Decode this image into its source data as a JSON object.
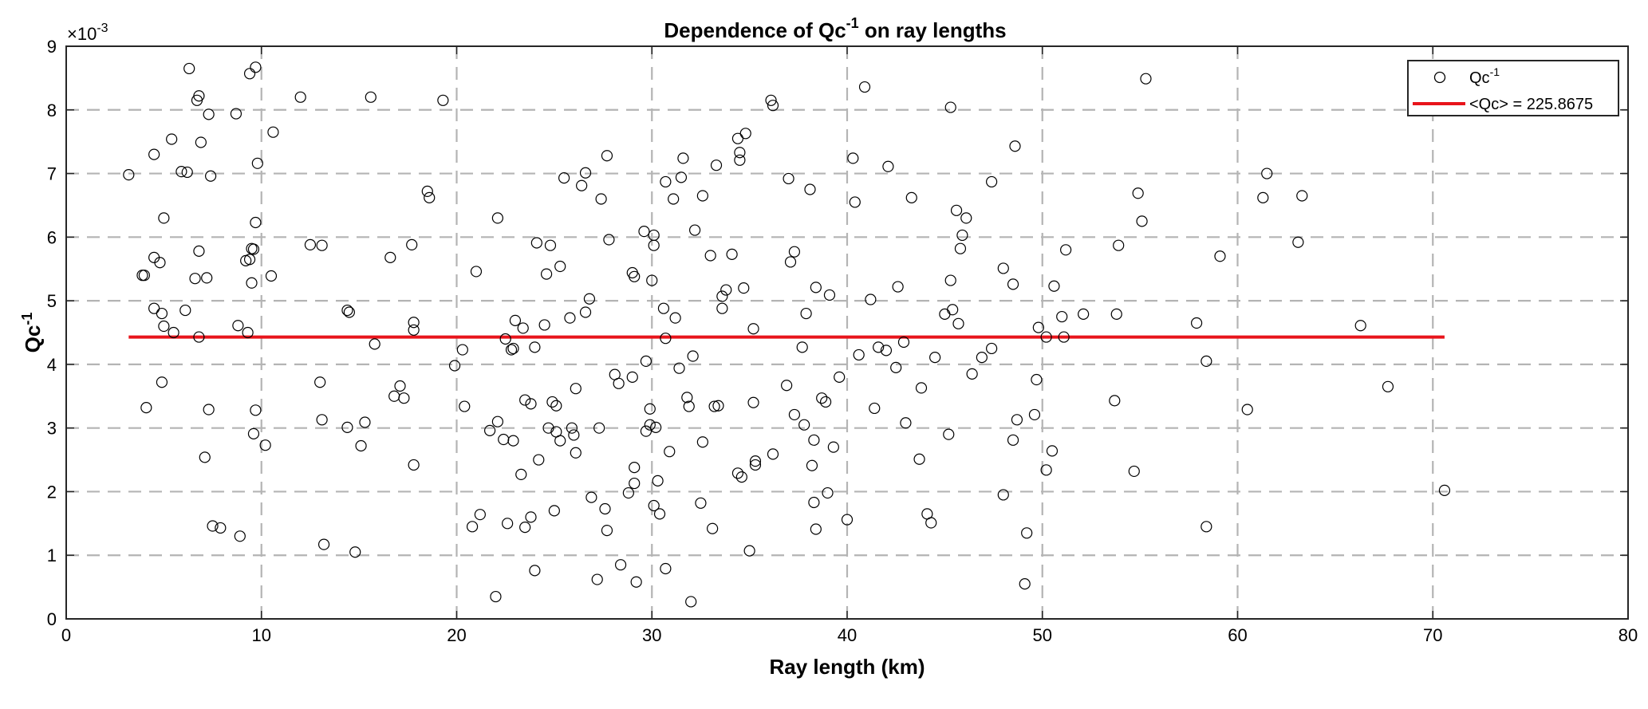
{
  "chart_data": {
    "type": "scatter",
    "title": {
      "base": "Dependence of Qc",
      "sup": "-1",
      "tail": " on ray lengths"
    },
    "xlabel": "Ray length (km)",
    "ylabel": {
      "base": "Qc",
      "sup": "-1"
    },
    "y_exponent": {
      "prefix": "×10",
      "sup": "-3"
    },
    "xlim": [
      0,
      80
    ],
    "ylim": [
      0,
      9
    ],
    "xticks": [
      "0",
      "10",
      "20",
      "30",
      "40",
      "50",
      "60",
      "70",
      "80"
    ],
    "yticks": [
      "0",
      "1",
      "2",
      "3",
      "4",
      "5",
      "6",
      "7",
      "8",
      "9"
    ],
    "grid": true,
    "legend_position": "top-right",
    "colors": {
      "points": "#000000",
      "mean_line": "#e8141b",
      "grid": "#b4b4b4"
    },
    "series": [
      {
        "name": {
          "base": "Qc",
          "sup": "-1"
        },
        "kind": "scatter",
        "unit_scale": "x10^-3",
        "points": [
          [
            3.2,
            6.98
          ],
          [
            3.9,
            5.4
          ],
          [
            4.0,
            5.4
          ],
          [
            4.1,
            3.32
          ],
          [
            4.5,
            7.3
          ],
          [
            4.5,
            5.68
          ],
          [
            4.5,
            4.88
          ],
          [
            4.8,
            5.6
          ],
          [
            5.0,
            6.3
          ],
          [
            4.9,
            4.8
          ],
          [
            4.9,
            3.72
          ],
          [
            5.0,
            4.6
          ],
          [
            5.4,
            7.54
          ],
          [
            5.5,
            4.5
          ],
          [
            5.9,
            7.03
          ],
          [
            6.1,
            4.85
          ],
          [
            6.2,
            7.02
          ],
          [
            6.3,
            8.65
          ],
          [
            6.6,
            5.35
          ],
          [
            6.7,
            8.15
          ],
          [
            6.8,
            8.22
          ],
          [
            6.8,
            5.78
          ],
          [
            6.8,
            4.43
          ],
          [
            6.9,
            7.49
          ],
          [
            7.1,
            2.54
          ],
          [
            7.2,
            5.36
          ],
          [
            7.3,
            3.29
          ],
          [
            7.3,
            7.93
          ],
          [
            7.4,
            6.96
          ],
          [
            7.5,
            1.46
          ],
          [
            7.9,
            1.43
          ],
          [
            8.7,
            7.94
          ],
          [
            8.8,
            4.61
          ],
          [
            8.9,
            1.3
          ],
          [
            9.2,
            5.63
          ],
          [
            9.3,
            4.5
          ],
          [
            9.4,
            5.65
          ],
          [
            9.4,
            8.57
          ],
          [
            9.5,
            5.82
          ],
          [
            9.5,
            5.28
          ],
          [
            9.6,
            5.81
          ],
          [
            9.6,
            2.91
          ],
          [
            9.7,
            3.28
          ],
          [
            9.7,
            6.23
          ],
          [
            9.7,
            8.67
          ],
          [
            9.8,
            7.16
          ],
          [
            10.2,
            2.73
          ],
          [
            10.5,
            5.39
          ],
          [
            10.6,
            7.65
          ],
          [
            12.0,
            8.2
          ],
          [
            12.5,
            5.88
          ],
          [
            13.0,
            3.72
          ],
          [
            13.1,
            5.87
          ],
          [
            13.1,
            3.13
          ],
          [
            13.2,
            1.17
          ],
          [
            14.4,
            4.85
          ],
          [
            14.4,
            3.01
          ],
          [
            14.5,
            4.82
          ],
          [
            14.8,
            1.05
          ],
          [
            15.1,
            2.72
          ],
          [
            15.3,
            3.09
          ],
          [
            15.6,
            8.2
          ],
          [
            15.8,
            4.32
          ],
          [
            16.6,
            5.68
          ],
          [
            16.8,
            3.5
          ],
          [
            17.1,
            3.66
          ],
          [
            17.3,
            3.47
          ],
          [
            17.7,
            5.88
          ],
          [
            17.8,
            2.42
          ],
          [
            17.8,
            4.66
          ],
          [
            17.8,
            4.54
          ],
          [
            18.5,
            6.72
          ],
          [
            18.6,
            6.62
          ],
          [
            19.3,
            8.15
          ],
          [
            19.9,
            3.98
          ],
          [
            20.3,
            4.23
          ],
          [
            20.4,
            3.34
          ],
          [
            20.8,
            1.45
          ],
          [
            21.0,
            5.46
          ],
          [
            21.2,
            1.64
          ],
          [
            21.7,
            2.96
          ],
          [
            22.0,
            0.35
          ],
          [
            22.1,
            3.1
          ],
          [
            22.1,
            6.3
          ],
          [
            22.4,
            2.82
          ],
          [
            22.5,
            4.4
          ],
          [
            22.6,
            1.5
          ],
          [
            22.8,
            4.23
          ],
          [
            22.9,
            4.25
          ],
          [
            22.9,
            2.8
          ],
          [
            23.0,
            4.69
          ],
          [
            23.3,
            2.27
          ],
          [
            23.4,
            4.57
          ],
          [
            23.5,
            3.44
          ],
          [
            23.5,
            1.44
          ],
          [
            23.8,
            3.38
          ],
          [
            23.8,
            1.6
          ],
          [
            24.0,
            4.27
          ],
          [
            24.0,
            0.76
          ],
          [
            24.1,
            5.91
          ],
          [
            24.2,
            2.5
          ],
          [
            24.5,
            4.62
          ],
          [
            24.6,
            5.42
          ],
          [
            24.7,
            3.0
          ],
          [
            24.8,
            5.87
          ],
          [
            24.9,
            3.41
          ],
          [
            25.0,
            1.7
          ],
          [
            25.1,
            2.94
          ],
          [
            25.1,
            3.35
          ],
          [
            25.3,
            5.54
          ],
          [
            25.3,
            2.8
          ],
          [
            25.5,
            6.93
          ],
          [
            25.8,
            4.73
          ],
          [
            25.9,
            3.0
          ],
          [
            26.0,
            2.89
          ],
          [
            26.1,
            3.62
          ],
          [
            26.1,
            2.61
          ],
          [
            26.4,
            6.81
          ],
          [
            26.6,
            4.82
          ],
          [
            26.6,
            7.01
          ],
          [
            26.8,
            5.03
          ],
          [
            26.9,
            1.91
          ],
          [
            27.2,
            0.62
          ],
          [
            27.3,
            3.0
          ],
          [
            27.4,
            6.6
          ],
          [
            27.6,
            1.73
          ],
          [
            27.7,
            1.39
          ],
          [
            27.7,
            7.28
          ],
          [
            27.8,
            5.96
          ],
          [
            28.1,
            3.84
          ],
          [
            28.3,
            3.7
          ],
          [
            28.4,
            0.85
          ],
          [
            28.8,
            1.98
          ],
          [
            29.0,
            3.8
          ],
          [
            29.0,
            5.44
          ],
          [
            29.1,
            5.38
          ],
          [
            29.1,
            2.13
          ],
          [
            29.1,
            2.38
          ],
          [
            29.2,
            0.58
          ],
          [
            29.6,
            6.09
          ],
          [
            29.7,
            2.95
          ],
          [
            29.7,
            4.05
          ],
          [
            29.9,
            3.3
          ],
          [
            29.9,
            3.05
          ],
          [
            30.0,
            5.32
          ],
          [
            30.1,
            6.03
          ],
          [
            30.1,
            5.87
          ],
          [
            30.1,
            1.78
          ],
          [
            30.2,
            3.01
          ],
          [
            30.3,
            2.17
          ],
          [
            30.4,
            1.65
          ],
          [
            30.6,
            4.88
          ],
          [
            30.7,
            6.87
          ],
          [
            30.7,
            4.41
          ],
          [
            30.7,
            0.79
          ],
          [
            30.9,
            2.63
          ],
          [
            31.1,
            6.6
          ],
          [
            31.2,
            4.73
          ],
          [
            31.4,
            3.94
          ],
          [
            31.5,
            6.94
          ],
          [
            31.6,
            7.24
          ],
          [
            31.8,
            3.48
          ],
          [
            31.9,
            3.34
          ],
          [
            32.0,
            0.27
          ],
          [
            32.1,
            4.13
          ],
          [
            32.2,
            6.11
          ],
          [
            32.5,
            1.82
          ],
          [
            32.6,
            6.65
          ],
          [
            32.6,
            2.78
          ],
          [
            33.0,
            5.71
          ],
          [
            33.1,
            1.42
          ],
          [
            33.2,
            3.34
          ],
          [
            33.3,
            7.13
          ],
          [
            33.4,
            3.35
          ],
          [
            33.6,
            5.07
          ],
          [
            33.6,
            4.88
          ],
          [
            33.8,
            5.17
          ],
          [
            34.1,
            5.73
          ],
          [
            34.4,
            2.29
          ],
          [
            34.4,
            7.55
          ],
          [
            34.5,
            7.21
          ],
          [
            34.5,
            7.33
          ],
          [
            34.6,
            2.23
          ],
          [
            34.7,
            5.2
          ],
          [
            34.8,
            7.63
          ],
          [
            35.0,
            1.07
          ],
          [
            35.2,
            3.4
          ],
          [
            35.2,
            4.56
          ],
          [
            35.3,
            2.42
          ],
          [
            35.3,
            2.48
          ],
          [
            36.1,
            8.15
          ],
          [
            36.2,
            8.07
          ],
          [
            36.2,
            2.59
          ],
          [
            36.9,
            3.67
          ],
          [
            37.0,
            6.92
          ],
          [
            37.1,
            5.61
          ],
          [
            37.3,
            5.77
          ],
          [
            37.3,
            3.21
          ],
          [
            37.7,
            4.27
          ],
          [
            37.8,
            3.05
          ],
          [
            37.9,
            4.8
          ],
          [
            38.1,
            6.75
          ],
          [
            38.2,
            2.41
          ],
          [
            38.3,
            1.83
          ],
          [
            38.3,
            2.81
          ],
          [
            38.4,
            1.41
          ],
          [
            38.4,
            5.21
          ],
          [
            38.7,
            3.47
          ],
          [
            38.9,
            3.41
          ],
          [
            39.0,
            1.98
          ],
          [
            39.1,
            5.09
          ],
          [
            39.3,
            2.7
          ],
          [
            39.6,
            3.8
          ],
          [
            40.0,
            1.56
          ],
          [
            40.3,
            7.24
          ],
          [
            40.4,
            6.55
          ],
          [
            40.6,
            4.15
          ],
          [
            40.9,
            8.36
          ],
          [
            41.2,
            5.02
          ],
          [
            41.4,
            3.31
          ],
          [
            41.6,
            4.27
          ],
          [
            42.0,
            4.22
          ],
          [
            42.1,
            7.11
          ],
          [
            42.5,
            3.95
          ],
          [
            42.6,
            5.22
          ],
          [
            42.9,
            4.35
          ],
          [
            43.0,
            3.08
          ],
          [
            43.3,
            6.62
          ],
          [
            43.7,
            2.51
          ],
          [
            43.8,
            3.63
          ],
          [
            44.1,
            1.65
          ],
          [
            44.3,
            1.51
          ],
          [
            44.5,
            4.11
          ],
          [
            45.0,
            4.79
          ],
          [
            45.2,
            2.9
          ],
          [
            45.3,
            5.32
          ],
          [
            45.3,
            8.04
          ],
          [
            45.4,
            4.86
          ],
          [
            45.6,
            6.42
          ],
          [
            45.7,
            4.64
          ],
          [
            45.8,
            5.82
          ],
          [
            45.9,
            6.03
          ],
          [
            46.1,
            6.3
          ],
          [
            46.4,
            3.85
          ],
          [
            46.9,
            4.11
          ],
          [
            47.4,
            4.25
          ],
          [
            47.4,
            6.87
          ],
          [
            48.0,
            1.95
          ],
          [
            48.0,
            5.51
          ],
          [
            48.5,
            2.81
          ],
          [
            48.5,
            5.26
          ],
          [
            48.6,
            7.43
          ],
          [
            48.7,
            3.13
          ],
          [
            49.1,
            0.55
          ],
          [
            49.2,
            1.35
          ],
          [
            49.6,
            3.21
          ],
          [
            49.7,
            3.76
          ],
          [
            49.8,
            4.58
          ],
          [
            50.2,
            4.43
          ],
          [
            50.2,
            2.34
          ],
          [
            50.5,
            2.64
          ],
          [
            50.6,
            5.23
          ],
          [
            51.0,
            4.75
          ],
          [
            51.1,
            4.43
          ],
          [
            51.2,
            5.8
          ],
          [
            52.1,
            4.79
          ],
          [
            53.7,
            3.43
          ],
          [
            53.8,
            4.79
          ],
          [
            53.9,
            5.87
          ],
          [
            54.7,
            2.32
          ],
          [
            54.9,
            6.69
          ],
          [
            55.1,
            6.25
          ],
          [
            55.3,
            8.49
          ],
          [
            57.9,
            4.65
          ],
          [
            58.4,
            1.45
          ],
          [
            58.4,
            4.05
          ],
          [
            59.1,
            5.7
          ],
          [
            60.5,
            3.29
          ],
          [
            61.3,
            6.62
          ],
          [
            61.5,
            7.0
          ],
          [
            63.1,
            5.92
          ],
          [
            63.3,
            6.65
          ],
          [
            66.3,
            4.61
          ],
          [
            67.7,
            3.65
          ],
          [
            70.6,
            2.02
          ]
        ]
      },
      {
        "name": {
          "base": "<Qc> = 225.8675",
          "sup": ""
        },
        "kind": "line",
        "unit_scale": "x10^-3",
        "points": [
          [
            3.2,
            4.43
          ],
          [
            70.6,
            4.43
          ]
        ]
      }
    ]
  }
}
